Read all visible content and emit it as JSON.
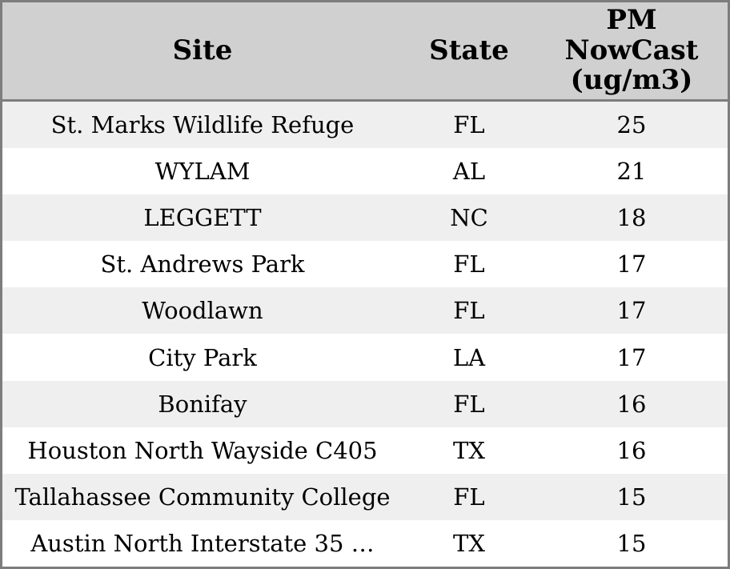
{
  "chart_data": {
    "type": "table",
    "columns": [
      "Site",
      "State",
      "PM NowCast (ug/m3)"
    ],
    "rows": [
      [
        "St. Marks Wildlife Refuge",
        "FL",
        25
      ],
      [
        "WYLAM",
        "AL",
        21
      ],
      [
        "LEGGETT",
        "NC",
        18
      ],
      [
        "St. Andrews Park",
        "FL",
        17
      ],
      [
        "Woodlawn",
        "FL",
        17
      ],
      [
        "City Park",
        "LA",
        17
      ],
      [
        "Bonifay",
        "FL",
        16
      ],
      [
        "Houston North Wayside C405",
        "TX",
        16
      ],
      [
        "Tallahassee Community College",
        "FL",
        15
      ],
      [
        "Austin North Interstate 35 …",
        "TX",
        15
      ]
    ]
  },
  "colors": {
    "header_bg": "#d0d0d0",
    "border": "#7d7d7d",
    "row_odd_bg": "#efefef",
    "row_even_bg": "#ffffff",
    "text": "#000000"
  }
}
